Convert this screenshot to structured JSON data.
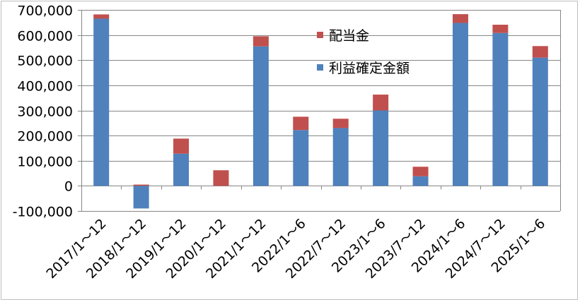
{
  "chart_data": {
    "type": "bar",
    "stacked": true,
    "categories": [
      "2017/1～12",
      "2018/1～12",
      "2019/1～12",
      "2020/1～12",
      "2021/1～12",
      "2022/1～6",
      "2022/7～12",
      "2023/1～6",
      "2023/7～12",
      "2024/1～6",
      "2024/7～12",
      "2025/1～6"
    ],
    "series": [
      {
        "name": "利益確定金額",
        "color": "#4f81bd",
        "values": [
          665000,
          -90000,
          128000,
          0,
          555000,
          222000,
          230000,
          300000,
          38000,
          648000,
          608000,
          510000
        ]
      },
      {
        "name": "配当金",
        "color": "#c0504d",
        "values": [
          17000,
          5000,
          60000,
          62000,
          40000,
          53000,
          37000,
          63000,
          38000,
          35000,
          33000,
          46000
        ]
      }
    ],
    "ylim": [
      -100000,
      700000
    ],
    "yticks": [
      700000,
      600000,
      500000,
      400000,
      300000,
      200000,
      100000,
      0,
      -100000
    ],
    "ytick_labels": [
      "700,000",
      "600,000",
      "500,000",
      "400,000",
      "300,000",
      "200,000",
      "100,000",
      "0",
      "-100,000"
    ],
    "negative_tick_color": "#ff0000",
    "grid": true,
    "legend": {
      "position": "top-center",
      "order": [
        "配当金",
        "利益確定金額"
      ]
    },
    "title": "",
    "xlabel": "",
    "ylabel": ""
  }
}
